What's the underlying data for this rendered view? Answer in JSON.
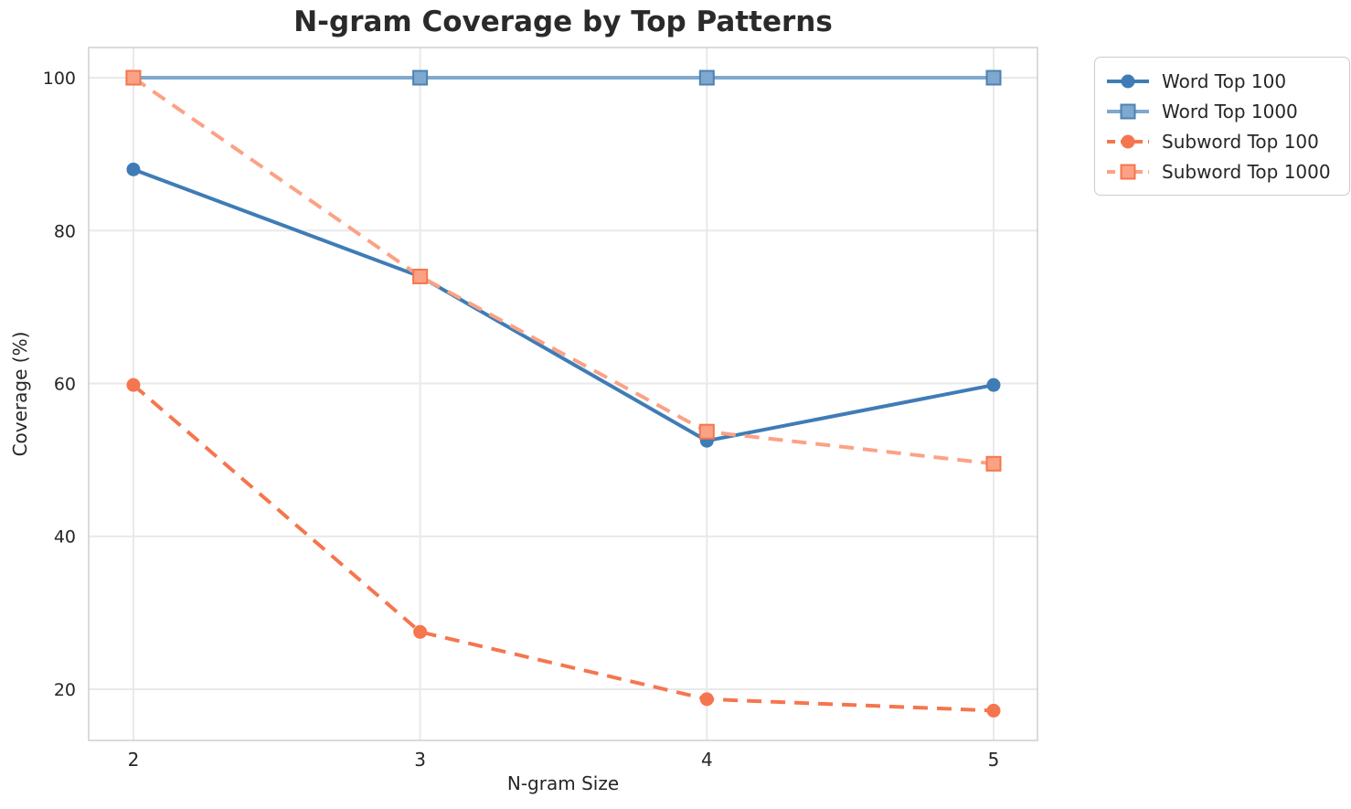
{
  "chart_data": {
    "type": "line",
    "title": "N-gram Coverage by Top Patterns",
    "xlabel": "N-gram Size",
    "ylabel": "Coverage (%)",
    "x": [
      2,
      3,
      4,
      5
    ],
    "xticks": [
      "2",
      "3",
      "4",
      "5"
    ],
    "yticks": [
      20,
      40,
      60,
      80,
      100
    ],
    "xlim": [
      1.844,
      5.153
    ],
    "ylim": [
      13.3,
      103.95
    ],
    "grid": true,
    "legend_position": "outside-top-right",
    "series": [
      {
        "name": "Word Top 100",
        "values": [
          88.0,
          74.0,
          52.5,
          59.8
        ],
        "color": "#3f7cb6",
        "marker": "circle",
        "marker_edge": "#3f7cb6",
        "dash": "solid"
      },
      {
        "name": "Word Top 1000",
        "values": [
          100.0,
          100.0,
          100.0,
          100.0
        ],
        "color": "#7ea8ce",
        "marker": "square",
        "marker_edge": "#4f82b0",
        "dash": "solid"
      },
      {
        "name": "Subword Top 100",
        "values": [
          59.8,
          27.5,
          18.7,
          17.2
        ],
        "color": "#f5764e",
        "marker": "circle",
        "marker_edge": "#f5764e",
        "dash": "dashed"
      },
      {
        "name": "Subword Top 1000",
        "values": [
          100.0,
          74.0,
          53.7,
          49.5
        ],
        "color": "#fba285",
        "marker": "square",
        "marker_edge": "#f5764e",
        "dash": "dashed"
      }
    ],
    "style": {
      "grid_color": "#e9e9e9",
      "spine_color": "#cfcfcf",
      "tick_label_color": "#262626",
      "title_color": "#2a2a2a",
      "background": "#ffffff"
    }
  }
}
